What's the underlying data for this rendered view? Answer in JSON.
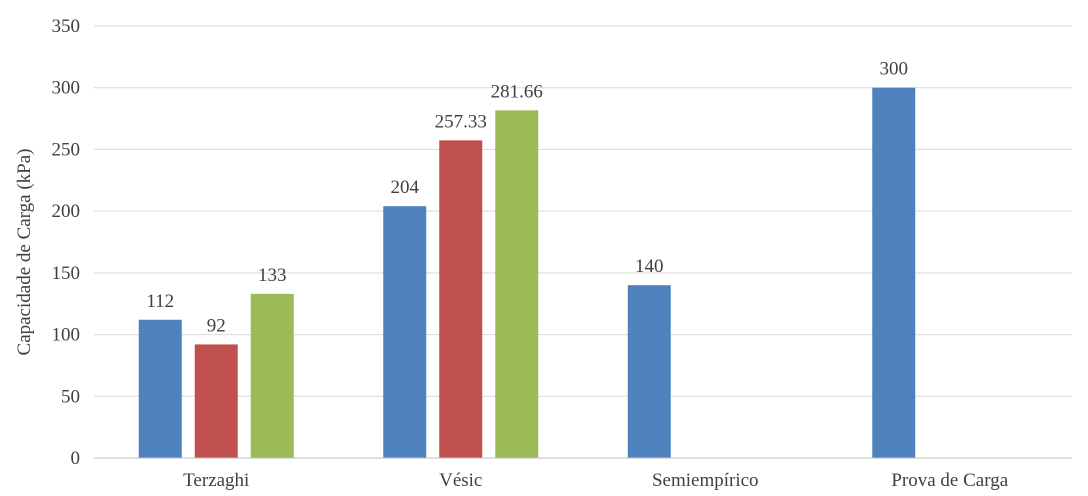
{
  "chart_data": {
    "type": "bar",
    "title": "",
    "xlabel": "",
    "ylabel": "Capacidade de Carga (kPa)",
    "ylim": [
      0,
      350
    ],
    "yticks": [
      0,
      50,
      100,
      150,
      200,
      250,
      300,
      350
    ],
    "grid": true,
    "legend": "none",
    "categories": [
      "Terzaghi",
      "Vésic",
      "Semiempírico",
      "Prova de Carga"
    ],
    "series": [
      {
        "color": "#4F81BD",
        "values": [
          112,
          204,
          140,
          300
        ],
        "labels": [
          "112",
          "204",
          "140",
          "300"
        ]
      },
      {
        "color": "#C0504D",
        "values": [
          92,
          257.33,
          null,
          null
        ],
        "labels": [
          "92",
          "257.33",
          "",
          ""
        ]
      },
      {
        "color": "#9BBB59",
        "values": [
          133,
          281.66,
          null,
          null
        ],
        "labels": [
          "133",
          "281.66",
          "",
          ""
        ]
      }
    ]
  }
}
